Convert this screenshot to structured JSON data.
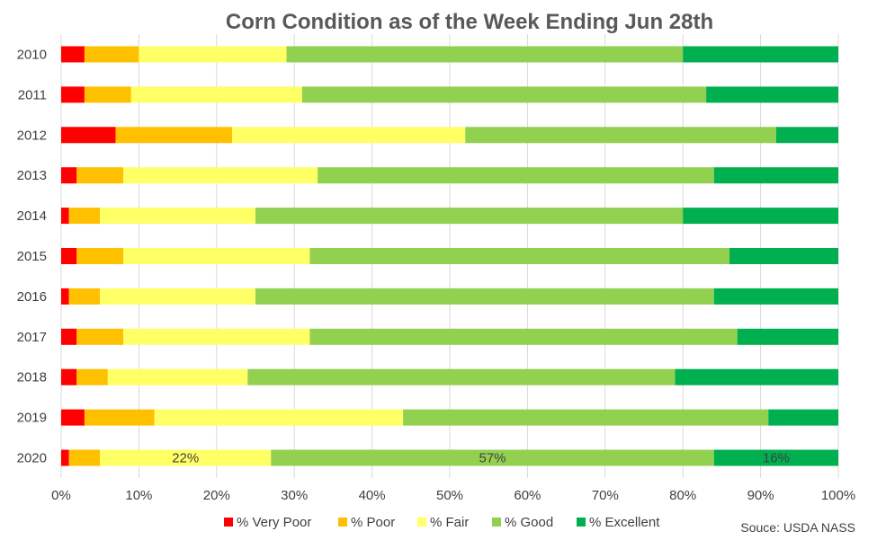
{
  "chart_data": {
    "type": "bar",
    "orientation": "horizontal",
    "stacked": "percent",
    "title": "Corn Condition as of the Week Ending Jun 28th",
    "categories": [
      "2010",
      "2011",
      "2012",
      "2013",
      "2014",
      "2015",
      "2016",
      "2017",
      "2018",
      "2019",
      "2020"
    ],
    "series": [
      {
        "name": "% Very Poor",
        "color": "#ff0000",
        "values": [
          3,
          3,
          7,
          2,
          1,
          2,
          1,
          2,
          2,
          3,
          1
        ]
      },
      {
        "name": "% Poor",
        "color": "#ffc000",
        "values": [
          7,
          6,
          15,
          6,
          4,
          6,
          4,
          6,
          4,
          9,
          4
        ]
      },
      {
        "name": "% Fair",
        "color": "#ffff66",
        "values": [
          19,
          22,
          30,
          25,
          20,
          24,
          20,
          24,
          18,
          32,
          22
        ]
      },
      {
        "name": "% Good",
        "color": "#92d050",
        "values": [
          51,
          52,
          40,
          51,
          55,
          54,
          59,
          55,
          55,
          47,
          57
        ]
      },
      {
        "name": "% Excellent",
        "color": "#00b050",
        "values": [
          20,
          17,
          8,
          16,
          20,
          14,
          16,
          13,
          21,
          9,
          16
        ]
      }
    ],
    "xlim": [
      0,
      100
    ],
    "x_ticks": [
      "0%",
      "10%",
      "20%",
      "30%",
      "40%",
      "50%",
      "60%",
      "70%",
      "80%",
      "90%",
      "100%"
    ],
    "data_labels": [
      {
        "category": "2020",
        "series": "% Fair",
        "text": "22%"
      },
      {
        "category": "2020",
        "series": "% Good",
        "text": "57%"
      },
      {
        "category": "2020",
        "series": "% Excellent",
        "text": "16%"
      }
    ],
    "legend_position": "bottom",
    "grid": "vertical",
    "source_note": "Souce: USDA NASS"
  }
}
